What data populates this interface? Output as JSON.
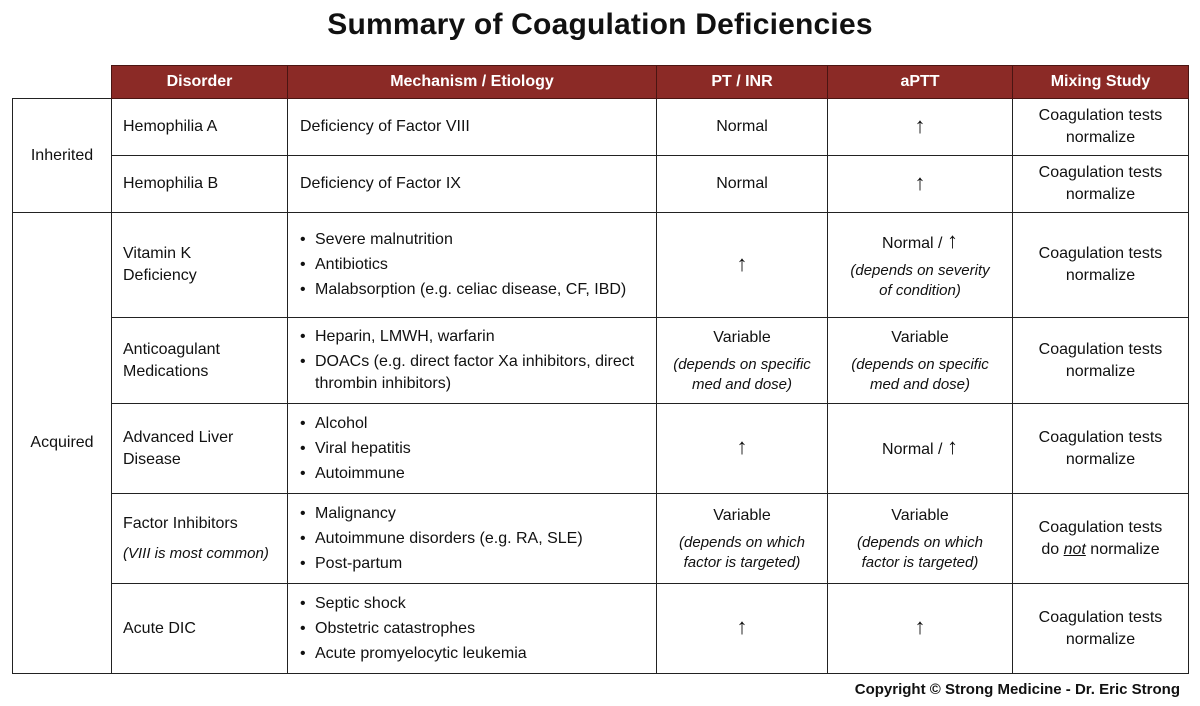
{
  "title": "Summary of Coagulation Deficiencies",
  "colors": {
    "header_bg": "#8b2a26",
    "header_text": "#ffffff",
    "border": "#222222"
  },
  "headers": [
    "Disorder",
    "Mechanism / Etiology",
    "PT / INR",
    "aPTT",
    "Mixing Study"
  ],
  "categories": {
    "inherited": "Inherited",
    "acquired": "Acquired"
  },
  "rows": [
    {
      "disorder": "Hemophilia A",
      "mechanism": [
        "Deficiency of Factor VIII"
      ],
      "pt": "Normal",
      "aptt_arrow": "↑",
      "mixing": [
        "Coagulation tests",
        "normalize"
      ]
    },
    {
      "disorder": "Hemophilia B",
      "mechanism": [
        "Deficiency of Factor IX"
      ],
      "pt": "Normal",
      "aptt_arrow": "↑",
      "mixing": [
        "Coagulation tests",
        "normalize"
      ]
    },
    {
      "disorder": [
        "Vitamin K",
        "Deficiency"
      ],
      "mechanism": [
        "Severe malnutrition",
        "Antibiotics",
        "Malabsorption (e.g. celiac disease, CF, IBD)"
      ],
      "pt_arrow": "↑",
      "aptt": "Normal / ",
      "aptt_arrow": "↑",
      "aptt_note": [
        "(depends on severity",
        "of condition)"
      ],
      "mixing": [
        "Coagulation tests",
        "normalize"
      ]
    },
    {
      "disorder": [
        "Anticoagulant",
        "Medications"
      ],
      "mechanism": [
        "Heparin, LMWH, warfarin",
        "DOACs (e.g. direct factor Xa inhibitors, direct thrombin inhibitors)"
      ],
      "pt": "Variable",
      "pt_note": [
        "(depends on specific",
        "med and dose)"
      ],
      "aptt": "Variable",
      "aptt_note": [
        "(depends on specific",
        "med and dose)"
      ],
      "mixing": [
        "Coagulation tests",
        "normalize"
      ]
    },
    {
      "disorder": [
        "Advanced Liver",
        "Disease"
      ],
      "mechanism": [
        "Alcohol",
        "Viral hepatitis",
        "Autoimmune"
      ],
      "pt_arrow": "↑",
      "aptt": "Normal / ",
      "aptt_arrow": "↑",
      "mixing": [
        "Coagulation tests",
        "normalize"
      ]
    },
    {
      "disorder": "Factor Inhibitors",
      "disorder_note": "(VIII is most common)",
      "mechanism": [
        "Malignancy",
        "Autoimmune disorders (e.g. RA, SLE)",
        "Post-partum"
      ],
      "pt": "Variable",
      "pt_note": [
        "(depends on which",
        "factor is targeted)"
      ],
      "aptt": "Variable",
      "aptt_note": [
        "(depends on which",
        "factor is targeted)"
      ],
      "mixing": [
        "Coagulation tests",
        "do ",
        "not",
        " normalize"
      ]
    },
    {
      "disorder": "Acute DIC",
      "mechanism": [
        "Septic shock",
        "Obstetric catastrophes",
        "Acute promyelocytic leukemia"
      ],
      "pt_arrow": "↑",
      "aptt_arrow": "↑",
      "mixing": [
        "Coagulation tests",
        "normalize"
      ]
    }
  ],
  "copyright": "Copyright © Strong Medicine - Dr. Eric Strong"
}
